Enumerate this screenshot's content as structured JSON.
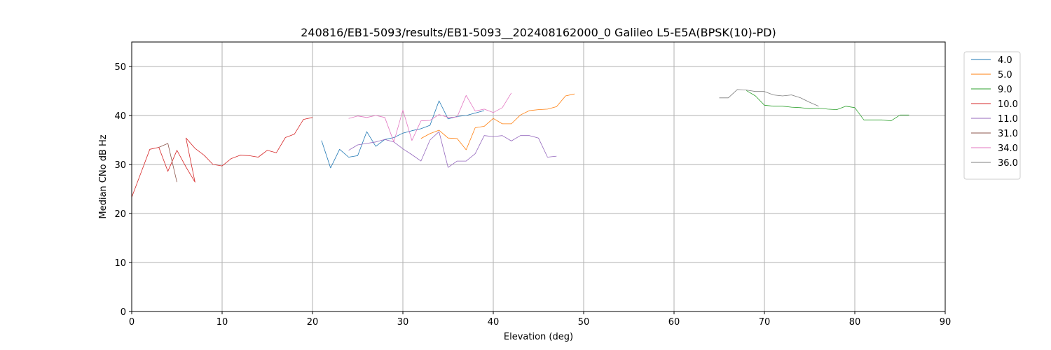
{
  "chart_data": {
    "type": "line",
    "title": "240816/EB1-5093/results/EB1-5093__202408162000_0 Galileo L5-E5A(BPSK(10)-PD)",
    "xlabel": "Elevation (deg)",
    "ylabel": "Median CNo dB Hz",
    "xlim": [
      0,
      90
    ],
    "ylim": [
      0,
      55
    ],
    "xticks": [
      0,
      10,
      20,
      30,
      40,
      50,
      60,
      70,
      80,
      90
    ],
    "yticks": [
      0,
      10,
      20,
      30,
      40,
      50
    ],
    "grid": true,
    "legend_position": "top-right outside",
    "series": [
      {
        "name": "4.0",
        "color": "#1f77b4",
        "points": [
          [
            21,
            34.9
          ],
          [
            22,
            29.3
          ],
          [
            23,
            33.1
          ],
          [
            24,
            31.5
          ],
          [
            25,
            31.8
          ],
          [
            26,
            36.7
          ],
          [
            27,
            33.7
          ],
          [
            28,
            35.1
          ],
          [
            29,
            35.5
          ],
          [
            30,
            36.4
          ],
          [
            31,
            36.9
          ],
          [
            32,
            37.3
          ],
          [
            33,
            38.0
          ],
          [
            34,
            43.0
          ],
          [
            35,
            39.3
          ],
          [
            36,
            39.8
          ],
          [
            37,
            40.0
          ],
          [
            38,
            40.5
          ],
          [
            39,
            41.0
          ]
        ]
      },
      {
        "name": "5.0",
        "color": "#ff7f0e",
        "points": [
          [
            32,
            35.3
          ],
          [
            33,
            36.3
          ],
          [
            34,
            37.0
          ],
          [
            35,
            35.4
          ],
          [
            36,
            35.3
          ],
          [
            37,
            33.0
          ],
          [
            38,
            37.5
          ],
          [
            39,
            37.8
          ],
          [
            40,
            39.4
          ],
          [
            41,
            38.3
          ],
          [
            42,
            38.3
          ],
          [
            43,
            40.1
          ],
          [
            44,
            41.0
          ],
          [
            45,
            41.2
          ],
          [
            46,
            41.3
          ],
          [
            47,
            41.8
          ],
          [
            48,
            44.0
          ],
          [
            49,
            44.4
          ]
        ]
      },
      {
        "name": "9.0",
        "color": "#2ca02c",
        "points": [
          [
            68,
            45.1
          ],
          [
            69,
            44.0
          ],
          [
            70,
            42.1
          ],
          [
            71,
            41.9
          ],
          [
            72,
            41.9
          ],
          [
            73,
            41.7
          ],
          [
            74,
            41.6
          ],
          [
            75,
            41.4
          ],
          [
            76,
            41.5
          ],
          [
            77,
            41.3
          ],
          [
            78,
            41.2
          ],
          [
            79,
            41.9
          ],
          [
            80,
            41.6
          ],
          [
            81,
            39.1
          ],
          [
            82,
            39.1
          ],
          [
            83,
            39.1
          ],
          [
            84,
            38.9
          ],
          [
            85,
            40.1
          ],
          [
            86,
            40.1
          ]
        ]
      },
      {
        "name": "10.0",
        "color": "#d62728",
        "points": [
          [
            0,
            23.3
          ],
          [
            1,
            28.2
          ],
          [
            2,
            33.1
          ],
          [
            3,
            33.5
          ],
          [
            4,
            28.6
          ],
          [
            5,
            32.9
          ],
          [
            6,
            29.5
          ],
          [
            7,
            26.4
          ],
          [
            6,
            35.4
          ],
          [
            7,
            33.3
          ],
          [
            8,
            31.9
          ],
          [
            9,
            30.0
          ],
          [
            10,
            29.7
          ],
          [
            11,
            31.2
          ],
          [
            12,
            31.9
          ],
          [
            13,
            31.8
          ],
          [
            14,
            31.5
          ],
          [
            15,
            32.9
          ],
          [
            16,
            32.4
          ],
          [
            17,
            35.5
          ],
          [
            18,
            36.2
          ],
          [
            19,
            39.2
          ],
          [
            20,
            39.6
          ]
        ]
      },
      {
        "name": "11.0",
        "color": "#9467bd",
        "points": [
          [
            24,
            32.9
          ],
          [
            25,
            34.0
          ],
          [
            26,
            34.3
          ],
          [
            27,
            34.6
          ],
          [
            28,
            35.1
          ],
          [
            29,
            34.6
          ],
          [
            30,
            33.2
          ],
          [
            31,
            32.0
          ],
          [
            32,
            30.7
          ],
          [
            33,
            35.0
          ],
          [
            34,
            36.7
          ],
          [
            35,
            29.4
          ],
          [
            36,
            30.7
          ],
          [
            37,
            30.7
          ],
          [
            38,
            32.2
          ],
          [
            39,
            35.9
          ],
          [
            40,
            35.7
          ],
          [
            41,
            35.9
          ],
          [
            42,
            34.8
          ],
          [
            43,
            35.9
          ],
          [
            44,
            35.9
          ],
          [
            45,
            35.4
          ],
          [
            46,
            31.5
          ],
          [
            47,
            31.7
          ]
        ]
      },
      {
        "name": "31.0",
        "color": "#8c564b",
        "points": [
          [
            3,
            33.5
          ],
          [
            4,
            34.3
          ],
          [
            5,
            26.4
          ]
        ]
      },
      {
        "name": "34.0",
        "color": "#e377c2",
        "points": [
          [
            24,
            39.4
          ],
          [
            25,
            39.9
          ],
          [
            26,
            39.6
          ],
          [
            27,
            40.0
          ],
          [
            28,
            39.6
          ],
          [
            29,
            34.6
          ],
          [
            30,
            41.1
          ],
          [
            31,
            34.9
          ],
          [
            32,
            38.9
          ],
          [
            33,
            39.0
          ],
          [
            34,
            40.2
          ],
          [
            35,
            39.6
          ],
          [
            36,
            39.7
          ],
          [
            37,
            44.1
          ],
          [
            38,
            40.9
          ],
          [
            39,
            41.3
          ],
          [
            40,
            40.6
          ],
          [
            41,
            41.6
          ],
          [
            42,
            44.6
          ]
        ]
      },
      {
        "name": "36.0",
        "color": "#7f7f7f",
        "points": [
          [
            65,
            43.6
          ],
          [
            66,
            43.6
          ],
          [
            67,
            45.3
          ],
          [
            68,
            45.2
          ],
          [
            69,
            44.9
          ],
          [
            70,
            44.9
          ],
          [
            71,
            44.2
          ],
          [
            72,
            44.0
          ],
          [
            73,
            44.2
          ],
          [
            74,
            43.6
          ],
          [
            75,
            42.7
          ],
          [
            76,
            41.9
          ]
        ]
      }
    ]
  }
}
